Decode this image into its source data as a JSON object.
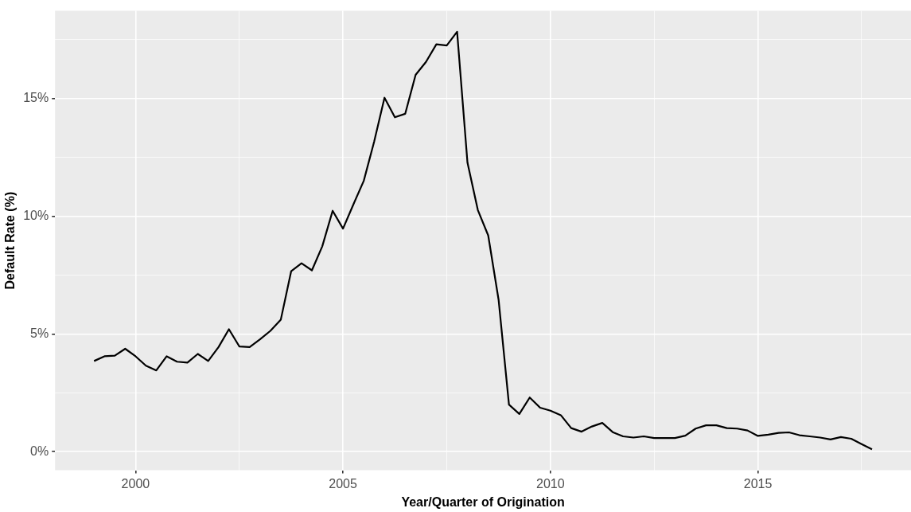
{
  "chart_data": {
    "type": "line",
    "xlabel": "Year/Quarter of Origination",
    "ylabel": "Default Rate (%)",
    "x": [
      1999,
      1999.25,
      1999.5,
      1999.75,
      2000,
      2000.25,
      2000.5,
      2000.75,
      2001,
      2001.25,
      2001.5,
      2001.75,
      2002,
      2002.25,
      2002.5,
      2002.75,
      2003,
      2003.25,
      2003.5,
      2003.75,
      2004,
      2004.25,
      2004.5,
      2004.75,
      2005,
      2005.25,
      2005.5,
      2005.75,
      2006,
      2006.25,
      2006.5,
      2006.75,
      2007,
      2007.25,
      2007.5,
      2007.75,
      2008,
      2008.25,
      2008.5,
      2008.75,
      2009,
      2009.25,
      2009.5,
      2009.75,
      2010,
      2010.25,
      2010.5,
      2010.75,
      2011,
      2011.25,
      2011.5,
      2011.75,
      2012,
      2012.25,
      2012.5,
      2012.75,
      2013,
      2013.25,
      2013.5,
      2013.75,
      2014,
      2014.25,
      2014.5,
      2014.75,
      2015,
      2015.25,
      2015.5,
      2015.75,
      2016,
      2016.25,
      2016.5,
      2016.75,
      2017,
      2017.25,
      2017.5,
      2017.75
    ],
    "series": [
      {
        "color": "#000000",
        "values": [
          3.85,
          4.05,
          4.08,
          4.37,
          4.05,
          3.65,
          3.45,
          4.05,
          3.82,
          3.78,
          4.15,
          3.85,
          4.44,
          5.2,
          4.47,
          4.44,
          4.77,
          5.13,
          5.6,
          7.66,
          8.0,
          7.7,
          8.72,
          10.23,
          9.47,
          10.5,
          11.5,
          13.16,
          15.03,
          14.2,
          14.35,
          16.0,
          16.55,
          17.3,
          17.25,
          17.83,
          12.27,
          10.26,
          9.18,
          6.45,
          2.0,
          1.6,
          2.3,
          1.87,
          1.74,
          1.55,
          1.0,
          0.85,
          1.07,
          1.22,
          0.83,
          0.65,
          0.6,
          0.65,
          0.58,
          0.58,
          0.58,
          0.68,
          0.98,
          1.12,
          1.12,
          1.0,
          0.98,
          0.9,
          0.67,
          0.72,
          0.8,
          0.82,
          0.7,
          0.65,
          0.6,
          0.52,
          0.62,
          0.55,
          0.32,
          0.1
        ]
      }
    ],
    "xlim": [
      1998.06,
      2018.69
    ],
    "ylim": [
      -0.79,
      18.72
    ],
    "xticks": [
      2000,
      {
        "value": 2002.5,
        "label": null
      },
      2005,
      {
        "value": 2007.5,
        "label": null
      },
      2010,
      {
        "value": 2012.5,
        "label": null
      },
      2015,
      {
        "value": 2017.5,
        "label": null
      }
    ],
    "yticks": [
      {
        "value": 0,
        "label": "0%"
      },
      {
        "value": 2.5,
        "label": null
      },
      {
        "value": 5,
        "label": "5%"
      },
      {
        "value": 7.5,
        "label": null
      },
      {
        "value": 10,
        "label": "10%"
      },
      {
        "value": 12.5,
        "label": null
      },
      {
        "value": 15,
        "label": "15%"
      },
      {
        "value": 17.5,
        "label": null
      }
    ],
    "grid": true,
    "marker": "none",
    "line_style": "solid"
  }
}
